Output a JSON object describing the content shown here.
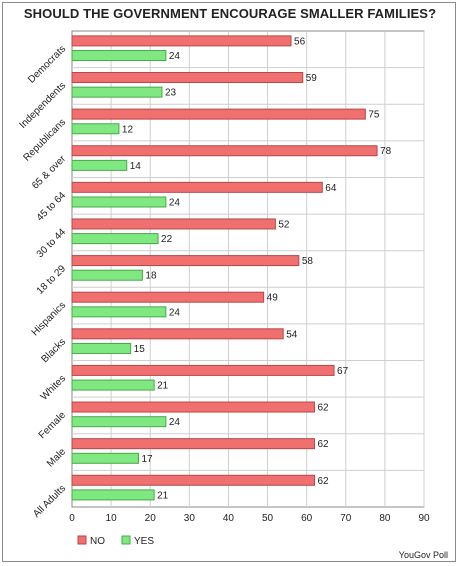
{
  "chart_data": {
    "type": "bar",
    "orientation": "horizontal",
    "title": "SHOULD THE GOVERNMENT ENCOURAGE SMALLER FAMILIES?",
    "categories": [
      "Democrats",
      "Independents",
      "Republicans",
      "65 & over",
      "45 to 64",
      "30 to 44",
      "18 to 29",
      "Hispanics",
      "Blacks",
      "Whites",
      "Female",
      "Male",
      "All Adults"
    ],
    "series": [
      {
        "name": "NO",
        "color": "#f07070",
        "values": [
          56,
          59,
          75,
          78,
          64,
          52,
          58,
          49,
          54,
          67,
          62,
          62,
          62
        ]
      },
      {
        "name": "YES",
        "color": "#80e880",
        "values": [
          24,
          23,
          12,
          14,
          24,
          22,
          18,
          24,
          15,
          21,
          24,
          17,
          21
        ]
      }
    ],
    "xlim": [
      0,
      90
    ],
    "xticks": [
      0,
      10,
      20,
      30,
      40,
      50,
      60,
      70,
      80,
      90
    ],
    "grid": true,
    "legend_position": "bottom-left",
    "source": "YouGov Poll"
  }
}
